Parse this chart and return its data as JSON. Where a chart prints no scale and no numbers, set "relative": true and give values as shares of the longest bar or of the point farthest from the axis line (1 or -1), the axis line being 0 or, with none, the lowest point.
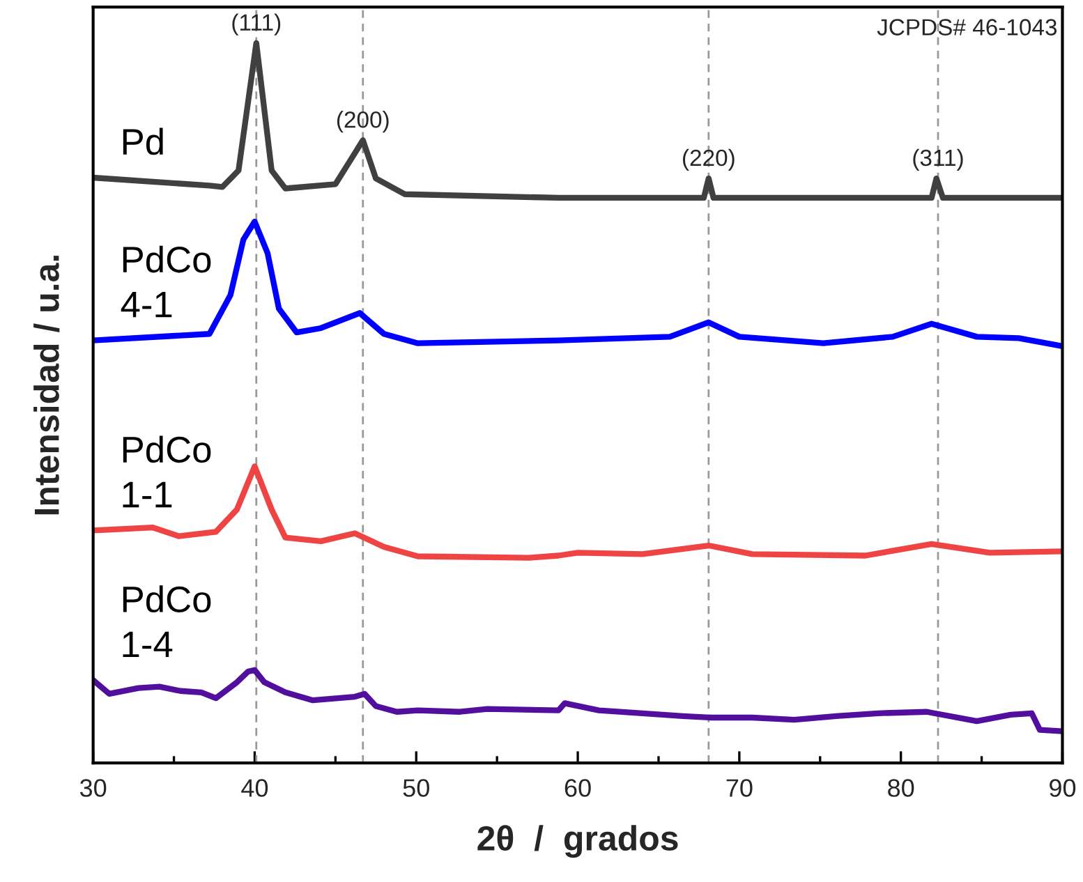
{
  "chart_data": {
    "type": "line",
    "relative": true,
    "xlabel": "2θ  /  grados",
    "ylabel": "Intensidad / u.a.",
    "xlim": [
      30,
      90
    ],
    "xticks": [
      30,
      {
        "value": 35,
        "label": null
      },
      40,
      {
        "value": 45,
        "label": null
      },
      50,
      {
        "value": 55,
        "label": null
      },
      60,
      {
        "value": 65,
        "label": null
      },
      70,
      {
        "value": 75,
        "label": null
      },
      80,
      {
        "value": 85,
        "label": null
      },
      90
    ],
    "tick_labels": "x",
    "grid": false,
    "legend": false,
    "marker": "none",
    "line_style": "solid",
    "series": [
      {
        "name": "Pd",
        "color": "#404040",
        "x": [
          30,
          37.2,
          38.0,
          39.0,
          40.1,
          41.05,
          41.9,
          45.0,
          46.7,
          47.5,
          49.3,
          58.8,
          67.8,
          68.1,
          68.4,
          81.9,
          82.2,
          82.6,
          90
        ],
        "values": [
          0.813,
          0.802,
          0.8,
          0.823,
          1.0,
          0.823,
          0.798,
          0.804,
          0.865,
          0.812,
          0.79,
          0.785,
          0.785,
          0.812,
          0.785,
          0.785,
          0.812,
          0.785,
          0.785
        ]
      },
      {
        "name": "PdCo\n4-1",
        "color": "#0000ff",
        "x": [
          30,
          37.2,
          38.5,
          39.3,
          40.0,
          40.8,
          41.5,
          42.6,
          44.1,
          46.5,
          48.0,
          50.1,
          58.8,
          65.7,
          68.1,
          70.0,
          75.2,
          79.5,
          81.9,
          84.7,
          87.3,
          90
        ],
        "values": [
          0.587,
          0.596,
          0.65,
          0.727,
          0.752,
          0.708,
          0.631,
          0.598,
          0.604,
          0.625,
          0.596,
          0.583,
          0.587,
          0.592,
          0.612,
          0.592,
          0.583,
          0.592,
          0.61,
          0.592,
          0.59,
          0.579
        ]
      },
      {
        "name": "PdCo\n1-1",
        "color": "#ef4444",
        "x": [
          30,
          33.7,
          35.3,
          37.6,
          38.9,
          40.0,
          41.05,
          41.9,
          44.1,
          46.2,
          48.0,
          50.1,
          57.0,
          58.8,
          60.0,
          64.0,
          68.1,
          70.8,
          77.8,
          81.9,
          85.5,
          90
        ],
        "values": [
          0.323,
          0.327,
          0.315,
          0.321,
          0.352,
          0.412,
          0.352,
          0.313,
          0.308,
          0.319,
          0.3,
          0.287,
          0.285,
          0.288,
          0.292,
          0.29,
          0.302,
          0.29,
          0.288,
          0.304,
          0.292,
          0.294
        ]
      },
      {
        "name": "PdCo\n1-4",
        "color": "#520f9e",
        "x": [
          30,
          31.0,
          32.8,
          34.1,
          35.4,
          36.7,
          37.6,
          38.9,
          39.6,
          40.0,
          40.6,
          41.9,
          43.6,
          46.2,
          46.8,
          47.5,
          48.8,
          50.1,
          52.7,
          54.4,
          58.8,
          59.2,
          59.6,
          61.3,
          64.0,
          66.5,
          68.3,
          70.8,
          73.4,
          76.0,
          78.6,
          81.6,
          84.7,
          86.8,
          88.1,
          88.6,
          90
        ],
        "values": [
          0.115,
          0.096,
          0.104,
          0.106,
          0.1,
          0.098,
          0.09,
          0.112,
          0.127,
          0.129,
          0.112,
          0.098,
          0.087,
          0.092,
          0.096,
          0.079,
          0.071,
          0.073,
          0.071,
          0.075,
          0.073,
          0.083,
          0.081,
          0.073,
          0.069,
          0.065,
          0.063,
          0.063,
          0.06,
          0.065,
          0.069,
          0.071,
          0.058,
          0.067,
          0.069,
          0.046,
          0.044
        ]
      }
    ],
    "ref_lines": [
      {
        "axis": "x",
        "value": 40.1,
        "color": "#999999",
        "line_style": "dashed"
      },
      {
        "axis": "x",
        "value": 46.7,
        "color": "#999999",
        "line_style": "dashed"
      },
      {
        "axis": "x",
        "value": 68.1,
        "color": "#999999",
        "line_style": "dashed"
      },
      {
        "axis": "x",
        "value": 82.3,
        "color": "#999999",
        "line_style": "dashed"
      }
    ],
    "annotations": [
      {
        "text": "(111)",
        "x": 40.1,
        "y": 1.0
      },
      {
        "text": "(200)",
        "x": 46.7,
        "y": 0.865
      },
      {
        "text": "(220)",
        "x": 68.1,
        "y": 0.812
      },
      {
        "text": "(311)",
        "x": 82.3,
        "y": 0.812
      },
      "JCPDS# 46-1043"
    ]
  }
}
